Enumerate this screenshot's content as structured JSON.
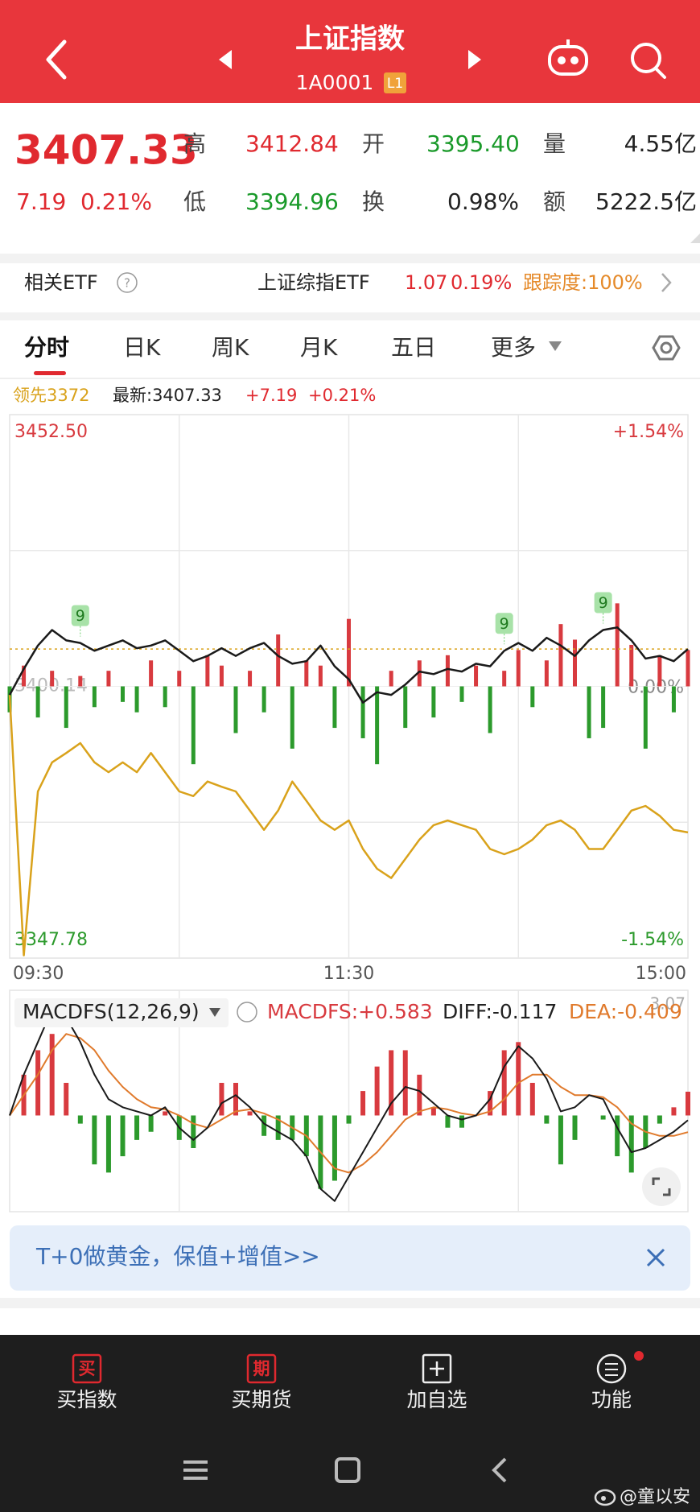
{
  "header": {
    "title": "上证指数",
    "code": "1A0001",
    "badge": "L1"
  },
  "quote": {
    "price": "3407.33",
    "change": "7.19",
    "change_pct": "0.21%",
    "fields": [
      {
        "label": "高",
        "value": "3412.84"
      },
      {
        "label": "开",
        "value": "3395.40"
      },
      {
        "label": "量",
        "value": "4.55亿"
      },
      {
        "label": "低",
        "value": "3394.96"
      },
      {
        "label": "换",
        "value": "0.98%"
      },
      {
        "label": "额",
        "value": "5222.5亿"
      }
    ]
  },
  "etf": {
    "label": "相关ETF",
    "name": "上证综指ETF",
    "price": "1.07",
    "pct": "0.19%",
    "tracking": "跟踪度:100%"
  },
  "tabs": [
    "分时",
    "日K",
    "周K",
    "月K",
    "五日",
    "更多"
  ],
  "info": {
    "lead": "领先3372",
    "latest": "最新:3407.33",
    "change": "+7.19",
    "change_pct": "+0.21%"
  },
  "intraday": {
    "type": "line",
    "ylim": [
      3347.78,
      3452.5
    ],
    "yticks": [
      {
        "value": 3452.5,
        "label": "3452.50"
      },
      3400.14,
      3347.78
    ],
    "y2lim": [
      -1.54,
      1.54
    ],
    "y2ticks": [
      {
        "value": 1.54,
        "label": "+1.54%"
      },
      {
        "value": 0,
        "label": "0.00%"
      },
      {
        "value": -1.54,
        "label": "-1.54%"
      }
    ],
    "x_labels": [
      "09:30",
      "11:30",
      "15:00"
    ],
    "price_color": "#1a1a1a",
    "lead_color": "#d9a21b",
    "up_color": "#d83a3f",
    "down_color": "#2c9a2c",
    "price": [
      3398.5,
      3403.5,
      3408,
      3411,
      3409,
      3408.5,
      3407,
      3408,
      3409,
      3407.5,
      3408,
      3409,
      3407,
      3405,
      3406,
      3407.5,
      3406,
      3407.5,
      3408.5,
      3406,
      3404.5,
      3405,
      3408,
      3404,
      3401.5,
      3397,
      3399,
      3398.5,
      3400.5,
      3403,
      3402.5,
      3403.5,
      3403,
      3404.5,
      3404,
      3407,
      3408.5,
      3407,
      3409.5,
      3408,
      3406,
      3409,
      3411,
      3411.5,
      3409,
      3405.5,
      3406,
      3405,
      3407.33
    ],
    "lead": [
      3398.5,
      3348.3,
      3379.9,
      3385.5,
      3387.3,
      3389.2,
      3385.5,
      3383.6,
      3385.5,
      3383.6,
      3387.3,
      3383.6,
      3379.9,
      3379.0,
      3381.8,
      3380.8,
      3379.9,
      3376.2,
      3372.5,
      3376.2,
      3381.8,
      3378.1,
      3374.3,
      3372.5,
      3374.3,
      3368.8,
      3365.0,
      3363.2,
      3366.9,
      3370.6,
      3373.4,
      3374.3,
      3373.4,
      3372.5,
      3368.8,
      3367.8,
      3368.8,
      3370.6,
      3373.4,
      3374.3,
      3372.5,
      3368.8,
      3368.8,
      3372.5,
      3376.2,
      3377.1,
      3375.2,
      3372.5,
      3372
    ],
    "flow": [
      -5,
      4,
      -6,
      3,
      -8,
      2,
      -4,
      3,
      -3,
      -5,
      5,
      -4,
      3,
      -15,
      6,
      4,
      -9,
      3,
      -5,
      10,
      -12,
      5,
      4,
      -8,
      13,
      -10,
      -15,
      3,
      -8,
      5,
      -6,
      6,
      -3,
      4,
      -9,
      3,
      7,
      -4,
      5,
      12,
      9,
      -10,
      -8,
      16,
      8,
      -12,
      6,
      -5,
      7
    ],
    "markers": [
      9,
      9,
      9
    ]
  },
  "macd": {
    "type": "bar",
    "title": "MACDFS(12,26,9)",
    "legend": [
      "MACDFS:+0.583",
      "DIFF:-0.117",
      "DEA:-0.409"
    ],
    "ylim": [
      -2.36,
      3.07
    ],
    "yticks": [
      3.07
    ],
    "diff_color": "#1a1a1a",
    "dea_color": "#e07a2c",
    "hist": [
      0,
      1.0,
      1.6,
      2.0,
      0.8,
      -0.2,
      -1.2,
      -1.4,
      -1.0,
      -0.6,
      -0.4,
      0.1,
      -0.6,
      -0.8,
      0.0,
      0.8,
      0.8,
      0.1,
      -0.5,
      -0.6,
      -0.6,
      -1.0,
      -1.8,
      -1.6,
      -0.2,
      0.6,
      1.2,
      1.6,
      1.6,
      1.0,
      0.2,
      -0.3,
      -0.3,
      0.0,
      0.6,
      1.6,
      1.8,
      0.8,
      -0.2,
      -1.2,
      -0.6,
      0.0,
      -0.1,
      -1.0,
      -1.4,
      -0.8,
      -0.2,
      0.2,
      0.583
    ],
    "diff": [
      0.0,
      1.0,
      1.8,
      2.6,
      2.4,
      1.8,
      1.0,
      0.4,
      0.2,
      0.1,
      0.0,
      0.2,
      -0.3,
      -0.6,
      -0.3,
      0.3,
      0.5,
      0.2,
      -0.2,
      -0.4,
      -0.6,
      -1.0,
      -1.8,
      -2.1,
      -1.5,
      -0.9,
      -0.3,
      0.3,
      0.7,
      0.6,
      0.3,
      0.0,
      -0.1,
      0.0,
      0.4,
      1.2,
      1.7,
      1.4,
      0.9,
      0.1,
      0.2,
      0.5,
      0.4,
      -0.3,
      -0.9,
      -0.8,
      -0.6,
      -0.4,
      -0.117
    ],
    "dea": [
      0.0,
      0.5,
      1.0,
      1.6,
      2.0,
      1.9,
      1.6,
      1.1,
      0.7,
      0.4,
      0.2,
      0.15,
      0.0,
      -0.2,
      -0.3,
      -0.1,
      0.1,
      0.15,
      0.05,
      -0.1,
      -0.3,
      -0.5,
      -0.9,
      -1.3,
      -1.4,
      -1.2,
      -0.9,
      -0.5,
      -0.1,
      0.1,
      0.2,
      0.15,
      0.05,
      0.0,
      0.1,
      0.4,
      0.8,
      1.0,
      1.0,
      0.7,
      0.5,
      0.5,
      0.45,
      0.2,
      -0.2,
      -0.4,
      -0.5,
      -0.5,
      -0.409
    ]
  },
  "banner": "T+0做黄金，保值+增值>>",
  "nav": [
    {
      "icon": "买",
      "label": "买指数"
    },
    {
      "icon": "期",
      "label": "买期货"
    },
    {
      "label": "加自选"
    },
    {
      "label": "功能"
    }
  ],
  "watermark": "@童以安"
}
